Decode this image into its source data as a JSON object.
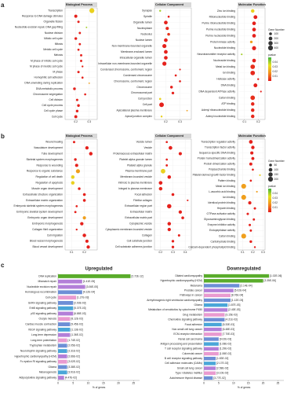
{
  "chart_data": [
    {
      "type": "dot",
      "panel_label": "a",
      "title": "Biological Process",
      "categories": [
        "Transcription",
        "Response to DNA damage stimulus",
        "Organelle fission",
        "Nucleotide-excision repair, DNA gap filling",
        "Nuclear division",
        "Mitotic cell cycle",
        "Mitosis",
        "Meiotic cell cycle",
        "Meiosis",
        "M phase of mitotic cell cycle",
        "M phase of meiotic cell cycle",
        "M phase",
        "Homophilic cell adhesion",
        "DNA unwinding during replication",
        "DNA metabolic process",
        "Chromosome segregation",
        "Cell division",
        "Cell cycle process",
        "Cell cycle phase",
        "Cell cycle"
      ],
      "x": [
        0.32,
        0.2,
        0.22,
        0.28,
        0.23,
        0.2,
        0.23,
        0.22,
        0.24,
        0.24,
        0.25,
        0.22,
        0.25,
        0.3,
        0.19,
        0.27,
        0.21,
        0.22,
        0.21,
        0.2
      ],
      "size": [
        420,
        130,
        60,
        12,
        50,
        90,
        50,
        45,
        50,
        50,
        30,
        60,
        40,
        10,
        90,
        40,
        60,
        90,
        80,
        120
      ],
      "pvalue": [
        0.03,
        0.001,
        0.001,
        0.04,
        0.001,
        0.001,
        0.001,
        0.001,
        0.001,
        0.001,
        0.002,
        0.001,
        0.001,
        0.02,
        0.001,
        0.001,
        0.001,
        0.001,
        0.001,
        0.001
      ],
      "xlim": [
        0.12,
        0.36
      ],
      "xticks": [
        0.2,
        0.3
      ]
    },
    {
      "type": "dot",
      "title": "Cellular Component",
      "categories": [
        "Synapse",
        "Spindle",
        "Organelle lumen",
        "Nucleoplasm",
        "Nucleolus",
        "Nuclear lumen",
        "Non-membrane-bounded organelle",
        "Membrane-enclosed lumen",
        "Intracellular organelle lumen",
        "Intracellular non-membrane-bounded organelle",
        "Condensed chromosome, centromeric region",
        "Condensed chromosome",
        "Chromosome, centromeric region",
        "Chromosome",
        "Chromosomal part",
        "Cell junction",
        "Cell part",
        "Apicolateral plasma membrane",
        "Apical junction complex"
      ],
      "x": [
        0.16,
        0.22,
        0.2,
        0.21,
        0.22,
        0.2,
        0.19,
        0.2,
        0.2,
        0.19,
        0.3,
        0.27,
        0.3,
        0.24,
        0.25,
        0.16,
        0.17,
        0.35,
        0.17
      ],
      "size": [
        30,
        40,
        200,
        140,
        100,
        200,
        260,
        210,
        200,
        260,
        20,
        40,
        40,
        90,
        80,
        40,
        350,
        10,
        30
      ],
      "pvalue": [
        0.04,
        0.001,
        0.001,
        0.002,
        0.004,
        0.001,
        0.001,
        0.001,
        0.001,
        0.001,
        0.001,
        0.001,
        0.001,
        0.001,
        0.001,
        0.03,
        0.001,
        0.02,
        0.03
      ],
      "xlim": [
        0.12,
        0.38
      ],
      "xticks": [
        0.2,
        0.3
      ]
    },
    {
      "type": "dot",
      "title": "Molecular Function",
      "categories": [
        "Zinc ion binding",
        "Ribonucleotide binding",
        "Purine ribonucleotide binding",
        "Purine nucleotide binding",
        "Purine nucleoside binding",
        "Protein kinase activity",
        "Nucleotide binding",
        "Neurotransmitter receptor activity",
        "Nucleoside binding",
        "Metal ion binding",
        "Ion binding",
        "Helicase activity",
        "DNA binding",
        "DNA dependent ATPase activity",
        "Cation binding",
        "ATP binding",
        "Adenyl ribonucleotide binding",
        "Adenyl nucleotide binding"
      ],
      "x": [
        0.16,
        0.18,
        0.17,
        0.17,
        0.17,
        0.15,
        0.17,
        0.08,
        0.17,
        0.16,
        0.16,
        0.2,
        0.18,
        0.22,
        0.16,
        0.16,
        0.16,
        0.16
      ],
      "size": [
        180,
        220,
        200,
        200,
        200,
        80,
        260,
        20,
        200,
        330,
        330,
        30,
        220,
        20,
        330,
        180,
        180,
        180
      ],
      "pvalue": [
        0.03,
        0.001,
        0.001,
        0.001,
        0.001,
        0.02,
        0.001,
        0.04,
        0.001,
        0.003,
        0.002,
        0.001,
        0.001,
        0.001,
        0.003,
        0.002,
        0.002,
        0.002
      ],
      "xlim": [
        0.05,
        0.25
      ],
      "xticks": [
        0.1,
        0.2
      ],
      "size_legend": {
        "title": "Gene Number",
        "values": [
          100,
          200,
          300,
          400
        ]
      },
      "color_legend": {
        "title": "pvalue",
        "ticks": [
          0.01,
          0.02,
          0.03,
          0.04
        ],
        "lim": [
          0,
          0.05
        ],
        "colors": [
          "#e41a1c",
          "#f28e1c",
          "#e8e21e",
          "#3cb33c"
        ]
      }
    },
    {
      "type": "dot",
      "panel_label": "b",
      "title": "Biological Process",
      "categories": [
        "Wound healing",
        "Vasculature development",
        "Tube development",
        "Skeletal system morphogenesis",
        "Response to wounding",
        "Response to organic substance",
        "Regulation of cell death",
        "Regulation of apoptosis",
        "Muscle organ development",
        "Extracellular structure organization",
        "Extracellular matrix organization",
        "Embryonic skeletal system morphogenesis",
        "Embryonic skeletal system development",
        "Embryonic organ development",
        "Embryonic morphogenesis",
        "Collagen fibril organization",
        "Cell migration",
        "Blood vessel morphogenesis",
        "Blood vessel development"
      ],
      "x": [
        0.12,
        0.22,
        0.25,
        0.13,
        0.14,
        0.15,
        0.11,
        0.11,
        0.16,
        0.2,
        0.2,
        0.14,
        0.13,
        0.2,
        0.18,
        0.14,
        0.2,
        0.22,
        0.23
      ],
      "size": [
        30,
        80,
        90,
        40,
        70,
        130,
        90,
        90,
        40,
        50,
        50,
        20,
        25,
        70,
        80,
        15,
        90,
        70,
        80
      ],
      "pvalue": [
        0.001,
        0.001,
        0.001,
        0.001,
        0.001,
        0.02,
        0.03,
        0.03,
        0.001,
        0.001,
        0.001,
        0.001,
        0.001,
        0.02,
        0.001,
        0.001,
        0.001,
        0.001,
        0.001
      ],
      "xlim": [
        0.05,
        0.3
      ],
      "xticks": [
        0.1,
        0.2
      ]
    },
    {
      "type": "dot",
      "title": "Cellular Component",
      "categories": [
        "Vesicle lumen",
        "Vesicle",
        "Proteinaceous extracellular matrix",
        "Platelet alpha granule lumen",
        "Platelet alpha granule",
        "Plasma membrane part",
        "Membrane-bounded vesicle",
        "Intrinsic to plasma membrane",
        "Integral to plasma membrane",
        "Focal adhesion",
        "Fibrillar collagen",
        "Extracellular region part",
        "Extracellular matrix",
        "Extracellular matrix part",
        "Cytoplasmic vesicle",
        "Cytoplasmic membrane-bounded vesicle",
        "Collagen",
        "Cell substrate junction",
        "Cell substrate adherens junction"
      ],
      "x": [
        0.25,
        0.28,
        0.36,
        0.25,
        0.25,
        0.22,
        0.27,
        0.2,
        0.2,
        0.3,
        0.42,
        0.27,
        0.36,
        0.38,
        0.27,
        0.27,
        0.35,
        0.3,
        0.3
      ],
      "size": [
        20,
        100,
        70,
        20,
        25,
        170,
        90,
        100,
        90,
        50,
        10,
        150,
        80,
        50,
        90,
        80,
        30,
        40,
        40
      ],
      "pvalue": [
        0.001,
        0.001,
        0.001,
        0.001,
        0.001,
        0.03,
        0.001,
        0.001,
        0.002,
        0.001,
        0.001,
        0.001,
        0.001,
        0.001,
        0.001,
        0.001,
        0.001,
        0.001,
        0.001
      ],
      "xlim": [
        0.15,
        0.45
      ],
      "xticks": [
        0.2,
        0.3,
        0.4
      ]
    },
    {
      "type": "dot",
      "title": "Molecular Function",
      "categories": [
        "Transcription regulator activity",
        "Transcription factor activity",
        "Sequence-specific DNA binding",
        "Protein homodimerization activity",
        "Protein dimerization activity",
        "Polysaccharide binding",
        "Platelet-derived growth factor binding",
        "Pattern binding",
        "Metal ion binding",
        "L-ascorbic acid binding",
        "Ion binding",
        "Identical protein binding",
        "Heparin binding",
        "GTPase activator activity",
        "Glycosaminoglycan binding",
        "Enzyme inhibitor activity",
        "Endopeptidase activity",
        "Cation binding",
        "Carbohydrate binding",
        "Calcium-dependent phospholipid binding"
      ],
      "x": [
        0.18,
        0.2,
        0.19,
        0.2,
        0.18,
        0.2,
        0.27,
        0.18,
        0.11,
        0.24,
        0.11,
        0.17,
        0.22,
        0.15,
        0.21,
        0.17,
        0.18,
        0.11,
        0.18,
        0.22
      ],
      "size": [
        100,
        80,
        70,
        60,
        60,
        20,
        10,
        20,
        200,
        10,
        200,
        70,
        30,
        30,
        25,
        30,
        25,
        200,
        40,
        15
      ],
      "pvalue": [
        0.001,
        0.001,
        0.001,
        0.001,
        0.001,
        0.001,
        0.03,
        0.001,
        0.02,
        0.02,
        0.02,
        0.001,
        0.001,
        0.001,
        0.001,
        0.001,
        0.001,
        0.02,
        0.001,
        0.001
      ],
      "xlim": [
        0.05,
        0.32
      ],
      "xticks": [
        0.1,
        0.2,
        0.3
      ],
      "size_legend": {
        "title": "Gene Number",
        "values": [
          50,
          100,
          150,
          200
        ]
      },
      "color_legend": {
        "title": "pvalue",
        "ticks": [
          0.01,
          0.02,
          0.03,
          0.04
        ],
        "lim": [
          0,
          0.05
        ],
        "colors": [
          "#e41a1c",
          "#f28e1c",
          "#e8e21e",
          "#3cb33c"
        ]
      }
    },
    {
      "type": "bar",
      "panel_label": "c",
      "title": "Upregulated",
      "xlabel": "% of genes",
      "categories": [
        "DNA replication",
        "Mismatch repair",
        "Nucleotide excision repair",
        "Homologous recombination",
        "Cell cycle",
        "GnRH signaling pathway",
        "ErbB signaling pathway",
        "p53 signaling pathway",
        "Oocyte meiosis",
        "Cardiac muscle contraction",
        "VEGF signaling pathway",
        "Long-term depression",
        "Long-term potentiation",
        "Tryptophan metabolism",
        "Neurotrophin signaling pathway",
        "Hypertrophic cardiomyopathy (HCM)",
        "Fc epsilon RI signaling pathway",
        "Glioma",
        "Melanogenesis",
        "Adipocytokine signaling pathway"
      ],
      "values": [
        24,
        8,
        9,
        8,
        6,
        5,
        5,
        5,
        4,
        4,
        4,
        4,
        3,
        3,
        3,
        3,
        3,
        3,
        3,
        2
      ],
      "pvalue_labels": [
        "[2.72E-12]",
        "[1.41E-05]",
        "[3.06E-05]",
        "[4.12E-04]",
        "[1.27E-03]",
        "[2.93E-03]",
        "[5.37E-03]",
        "[6.88E-03]",
        "[8.12E-03]",
        "[9.45E-03]",
        "[1.13E-02]",
        "[1.36E-02]",
        "[1.74E-02]",
        "[2.05E-02]",
        "[2.31E-02]",
        "[2.66E-02]",
        "[3.02E-02]",
        "[3.38E-02]",
        "[3.91E-02]",
        "[4.47E-02]"
      ],
      "colors": [
        "#5aac2b",
        "#b37fd8",
        "#b37fd8",
        "#6d8fd6",
        "#e99ad0",
        "#6d8fd6",
        "#4aa6d8",
        "#b37fd8",
        "#e99ad0",
        "#6d8fd6",
        "#4aa6d8",
        "#b37fd8",
        "#e99ad0",
        "#6d8fd6",
        "#4aa6d8",
        "#b37fd8",
        "#e99ad0",
        "#6d8fd6",
        "#4aa6d8",
        "#b37fd8"
      ],
      "xlim": [
        0,
        27
      ],
      "xticks": [
        0,
        5,
        10,
        15,
        20,
        25
      ]
    },
    {
      "type": "bar",
      "title": "Downregulated",
      "xlabel": "% of genes",
      "categories": [
        "Dilated cardiomyopathy",
        "Hypertrophic cardiomyopathy (HCM)",
        "Melanoma",
        "Prostate cancer",
        "Pathways in cancer",
        "Arrhythmogenic right ventricular cardiomyopathy",
        "Glioma",
        "Metabolism of xenobiotics by cytochrome P450",
        "Drug metabolism",
        "Chemokine signaling pathway",
        "Focal adhesion",
        "Non-small cell lung cancer",
        "ECM-receptor interaction",
        "Renal cell carcinoma",
        "Antigen processing and presentation",
        "T cell receptor signaling pathway",
        "Colorectal cancer",
        "B cell receptor signaling pathway",
        "Cell adhesion molecules (CAMs)",
        "Small cell lung cancer",
        "Type I diabetes mellitus",
        "Autoimmune thyroid disease"
      ],
      "values": [
        22,
        20,
        12,
        10,
        9,
        9,
        8,
        8,
        7,
        7,
        6,
        6,
        6,
        5,
        5,
        5,
        5,
        4,
        4,
        4,
        4,
        3
      ],
      "pvalue_labels": [
        "[1.02E-06]",
        "[3.35E-06]",
        "[2.14E-04]",
        "[5.02E-04]",
        "[8.76E-04]",
        "[1.12E-03]",
        "[1.87E-03]",
        "[2.40E-03]",
        "[3.15E-03]",
        "[4.21E-03]",
        "[5.33E-03]",
        "[6.48E-03]",
        "[7.70E-03]",
        "[9.02E-03]",
        "[1.08E-02]",
        "[1.29E-02]",
        "[1.55E-02]",
        "[1.83E-02]",
        "[2.17E-02]",
        "[2.58E-02]",
        "[3.10E-02]",
        "[3.77E-02]"
      ],
      "colors": [
        "#5aac2b",
        "#5aac2b",
        "#6d8fd6",
        "#b37fd8",
        "#e99ad0",
        "#6d8fd6",
        "#4aa6d8",
        "#b37fd8",
        "#e99ad0",
        "#6d8fd6",
        "#4aa6d8",
        "#b37fd8",
        "#e99ad0",
        "#6d8fd6",
        "#4aa6d8",
        "#b37fd8",
        "#e99ad0",
        "#6d8fd6",
        "#4aa6d8",
        "#b37fd8",
        "#e99ad0",
        "#6d8fd6"
      ],
      "xlim": [
        0,
        27
      ],
      "xticks": [
        0,
        5,
        10,
        15,
        20,
        25
      ]
    }
  ]
}
